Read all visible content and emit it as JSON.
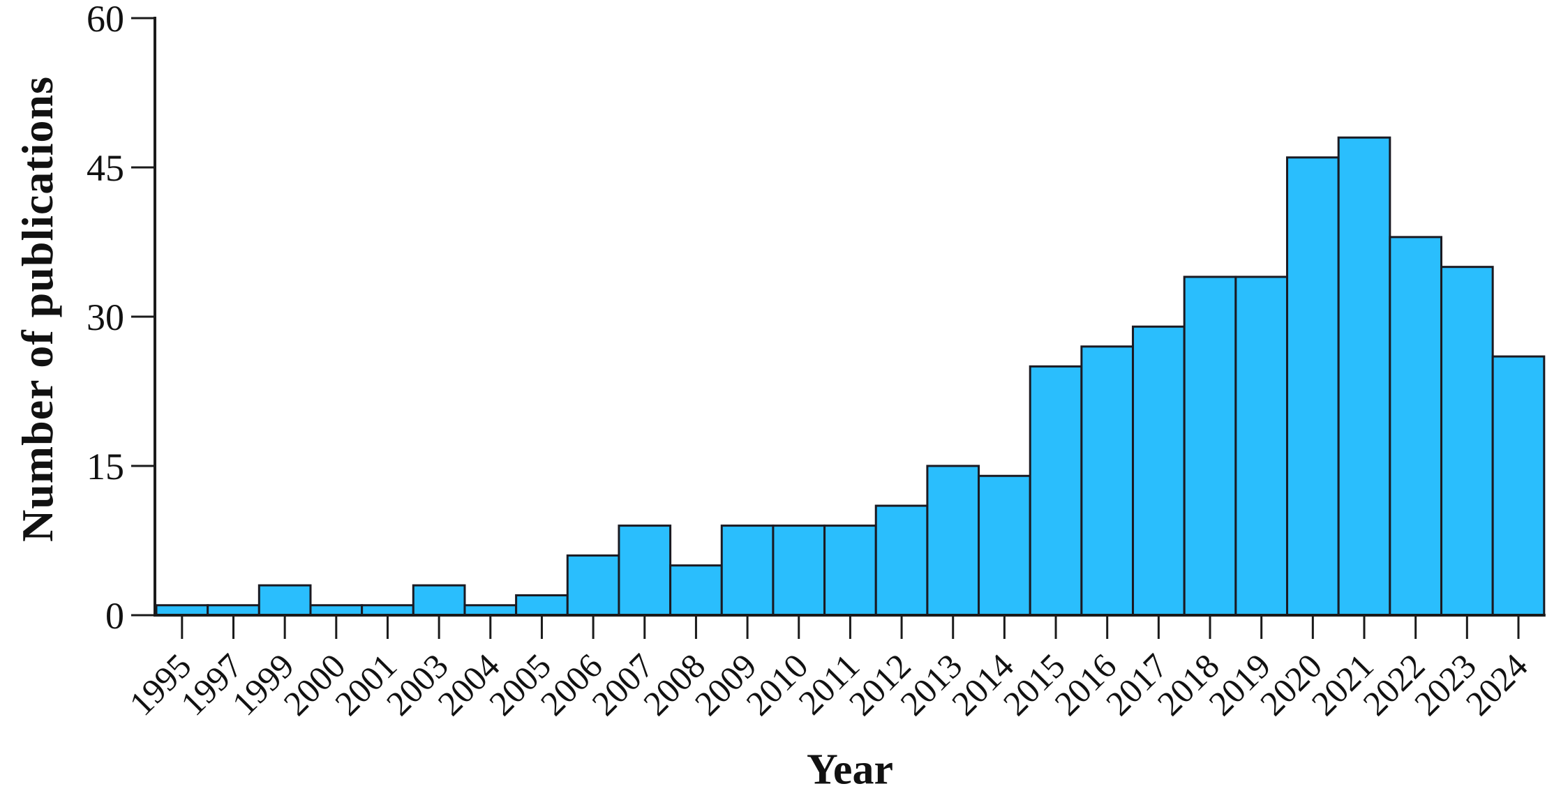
{
  "figure": {
    "background": "#ffffff",
    "text_color": "#111111"
  },
  "chart_data": {
    "type": "bar",
    "title": "",
    "xlabel": "Year",
    "ylabel": "Number of publications",
    "categories": [
      "1995",
      "1997",
      "1999",
      "2000",
      "2001",
      "2003",
      "2004",
      "2005",
      "2006",
      "2007",
      "2008",
      "2009",
      "2010",
      "2011",
      "2012",
      "2013",
      "2014",
      "2015",
      "2016",
      "2017",
      "2018",
      "2019",
      "2020",
      "2021",
      "2022",
      "2023",
      "2024"
    ],
    "values": [
      1,
      1,
      3,
      1,
      1,
      3,
      1,
      2,
      6,
      9,
      5,
      9,
      9,
      9,
      11,
      15,
      14,
      25,
      27,
      29,
      34,
      34,
      46,
      48,
      38,
      35,
      26
    ],
    "yticks": [
      0,
      15,
      30,
      45,
      60
    ],
    "ylim": [
      0,
      60
    ],
    "grid": false,
    "legend": null,
    "bar_fill": "#2abefd",
    "bar_stroke": "#1a1a22",
    "axis_color": "#1a1a1a",
    "xtick_rotation_deg": -45
  }
}
